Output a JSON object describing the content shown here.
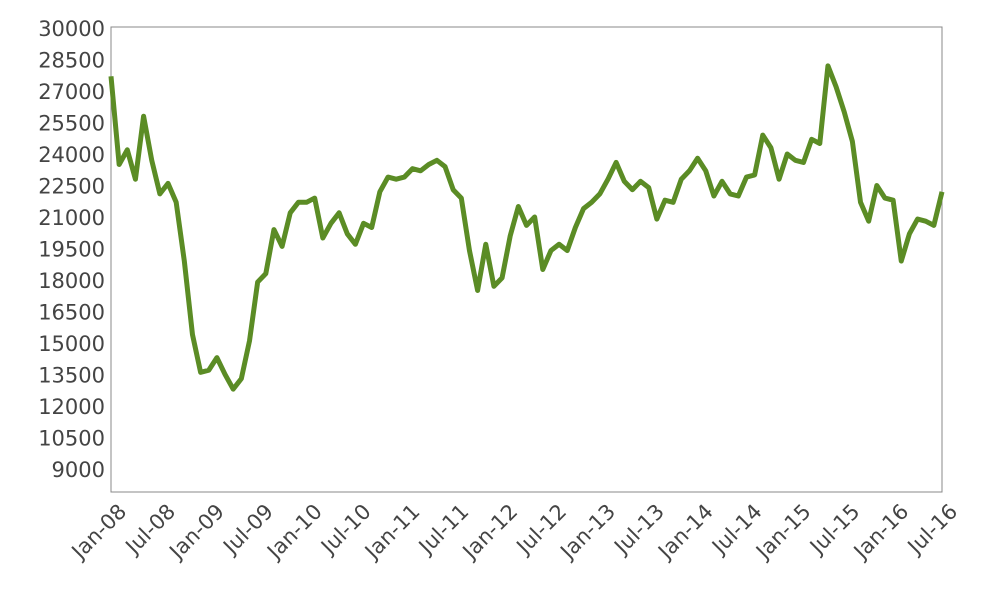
{
  "chart_data": {
    "type": "line",
    "x": [
      "2008-01",
      "2008-02",
      "2008-03",
      "2008-04",
      "2008-05",
      "2008-06",
      "2008-07",
      "2008-08",
      "2008-09",
      "2008-10",
      "2008-11",
      "2008-12",
      "2009-01",
      "2009-02",
      "2009-03",
      "2009-04",
      "2009-05",
      "2009-06",
      "2009-07",
      "2009-08",
      "2009-09",
      "2009-10",
      "2009-11",
      "2009-12",
      "2010-01",
      "2010-02",
      "2010-03",
      "2010-04",
      "2010-05",
      "2010-06",
      "2010-07",
      "2010-08",
      "2010-09",
      "2010-10",
      "2010-11",
      "2010-12",
      "2011-01",
      "2011-02",
      "2011-03",
      "2011-04",
      "2011-05",
      "2011-06",
      "2011-07",
      "2011-08",
      "2011-09",
      "2011-10",
      "2011-11",
      "2011-12",
      "2012-01",
      "2012-02",
      "2012-03",
      "2012-04",
      "2012-05",
      "2012-06",
      "2012-07",
      "2012-08",
      "2012-09",
      "2012-10",
      "2012-11",
      "2012-12",
      "2013-01",
      "2013-02",
      "2013-03",
      "2013-04",
      "2013-05",
      "2013-06",
      "2013-07",
      "2013-08",
      "2013-09",
      "2013-10",
      "2013-11",
      "2013-12",
      "2014-01",
      "2014-02",
      "2014-03",
      "2014-04",
      "2014-05",
      "2014-06",
      "2014-07",
      "2014-08",
      "2014-09",
      "2014-10",
      "2014-11",
      "2014-12",
      "2015-01",
      "2015-02",
      "2015-03",
      "2015-04",
      "2015-05",
      "2015-06",
      "2015-07",
      "2015-08",
      "2015-09",
      "2015-10",
      "2015-11",
      "2015-12",
      "2016-01",
      "2016-02",
      "2016-03",
      "2016-04",
      "2016-05",
      "2016-06",
      "2016-07"
    ],
    "series": [
      {
        "color": "#5b8c25",
        "values": [
          27800,
          23600,
          24300,
          22900,
          25900,
          23800,
          22200,
          22700,
          21800,
          19000,
          15500,
          13700,
          13800,
          14400,
          13600,
          12900,
          13400,
          15200,
          18000,
          18400,
          20500,
          19700,
          21300,
          21800,
          21800,
          22000,
          20100,
          20800,
          21300,
          20300,
          19800,
          20800,
          20600,
          22300,
          23000,
          22900,
          23000,
          23400,
          23300,
          23600,
          23800,
          23500,
          22400,
          22000,
          19500,
          17600,
          19800,
          17800,
          18200,
          20200,
          21600,
          20700,
          21100,
          18600,
          19500,
          19800,
          19500,
          20600,
          21500,
          21800,
          22200,
          22900,
          23700,
          22800,
          22400,
          22800,
          22500,
          21000,
          21900,
          21800,
          22900,
          23300,
          23900,
          23300,
          22100,
          22800,
          22200,
          22100,
          23000,
          23100,
          25000,
          24400,
          22900,
          24100,
          23800,
          23700,
          24800,
          24600,
          28300,
          27300,
          26100,
          24700,
          21800,
          20900,
          22600,
          22000,
          21900,
          19000,
          20300,
          21000,
          20900,
          20700,
          22300
        ]
      }
    ],
    "xlim": [
      "2008-01",
      "2016-07"
    ],
    "xticks": [
      {
        "value": "2008-01",
        "label": "Jan-08"
      },
      {
        "value": "2008-07",
        "label": "Jul-08"
      },
      {
        "value": "2009-01",
        "label": "Jan-09"
      },
      {
        "value": "2009-07",
        "label": "Jul-09"
      },
      {
        "value": "2010-01",
        "label": "Jan-10"
      },
      {
        "value": "2010-07",
        "label": "Jul-10"
      },
      {
        "value": "2011-01",
        "label": "Jan-11"
      },
      {
        "value": "2011-07",
        "label": "Jul-11"
      },
      {
        "value": "2012-01",
        "label": "Jan-12"
      },
      {
        "value": "2012-07",
        "label": "Jul-12"
      },
      {
        "value": "2013-01",
        "label": "Jan-13"
      },
      {
        "value": "2013-07",
        "label": "Jul-13"
      },
      {
        "value": "2014-01",
        "label": "Jan-14"
      },
      {
        "value": "2014-07",
        "label": "Jul-14"
      },
      {
        "value": "2015-01",
        "label": "Jan-15"
      },
      {
        "value": "2015-07",
        "label": "Jul-15"
      },
      {
        "value": "2016-01",
        "label": "Jan-16"
      },
      {
        "value": "2016-07",
        "label": "Jul-16"
      }
    ],
    "ylim": [
      8000,
      30150
    ],
    "yticks": [
      9000,
      10500,
      12000,
      13500,
      15000,
      16500,
      18000,
      19500,
      21000,
      22500,
      24000,
      25500,
      27000,
      28500,
      30000
    ],
    "grid": false
  }
}
